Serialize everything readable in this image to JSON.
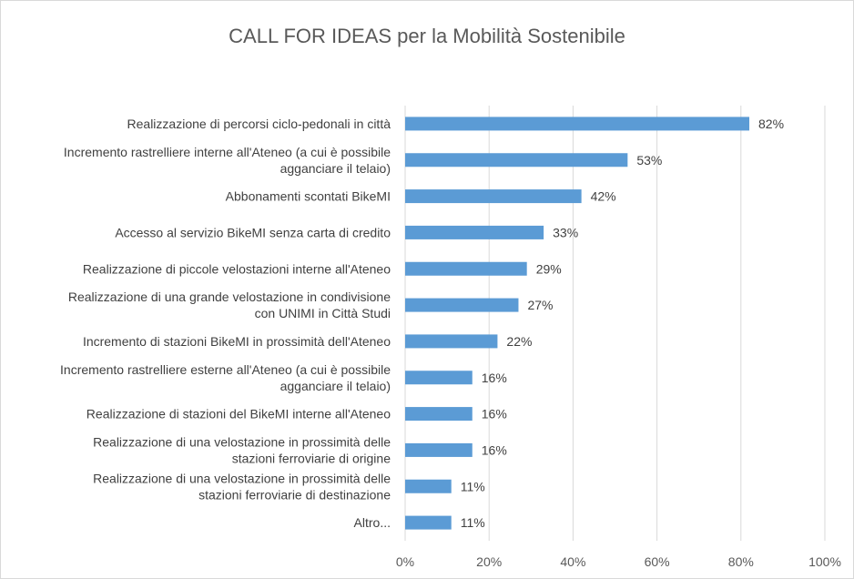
{
  "chart_data": {
    "type": "bar",
    "orientation": "horizontal",
    "title": "CALL FOR IDEAS per la Mobilità Sostenibile",
    "xlabel": "",
    "ylabel": "",
    "xlim": [
      0,
      100
    ],
    "ticks": [
      "0%",
      "20%",
      "40%",
      "60%",
      "80%",
      "100%"
    ],
    "grid": true,
    "legend": "none",
    "bar_color": "#5b9bd5",
    "categories": [
      [
        "Realizzazione di percorsi ciclo-pedonali in città"
      ],
      [
        "Incremento rastrelliere interne all'Ateneo (a cui è possibile",
        "agganciare il telaio)"
      ],
      [
        "Abbonamenti scontati BikeMI"
      ],
      [
        "Accesso al servizio BikeMI senza carta di credito"
      ],
      [
        "Realizzazione di piccole velostazioni interne all'Ateneo"
      ],
      [
        "Realizzazione di una grande velostazione in condivisione",
        "con UNIMI in Città Studi"
      ],
      [
        "Incremento di stazioni BikeMI in prossimità dell'Ateneo"
      ],
      [
        "Incremento rastrelliere esterne all'Ateneo (a cui è possibile",
        "agganciare il telaio)"
      ],
      [
        "Realizzazione di stazioni del BikeMI interne all'Ateneo"
      ],
      [
        "Realizzazione di una velostazione in prossimità delle",
        "stazioni ferroviarie di origine"
      ],
      [
        "Realizzazione di una velostazione in prossimità delle",
        "stazioni ferroviarie di destinazione"
      ],
      [
        "Altro..."
      ]
    ],
    "values": [
      82,
      53,
      42,
      33,
      29,
      27,
      22,
      16,
      16,
      16,
      11,
      11
    ],
    "data_labels": [
      "82%",
      "53%",
      "42%",
      "33%",
      "29%",
      "27%",
      "22%",
      "16%",
      "16%",
      "16%",
      "11%",
      "11%"
    ]
  }
}
